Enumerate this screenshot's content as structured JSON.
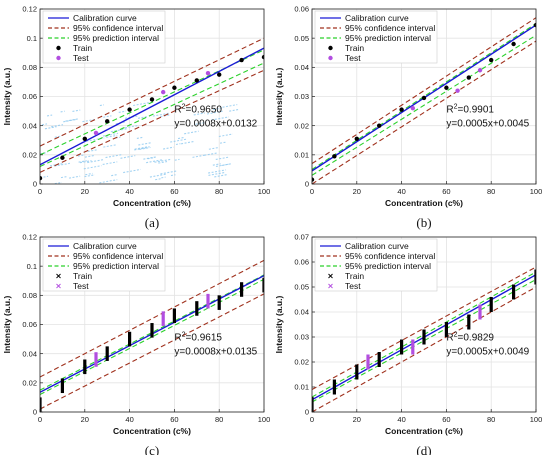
{
  "chart_data": [
    {
      "type": "scatter",
      "panel_label": "(a)",
      "xlabel": "Concentration (c%)",
      "ylabel": "Intensity (a.u.)",
      "xlim": [
        0,
        100
      ],
      "ylim": [
        0,
        0.12
      ],
      "xticks": [
        0,
        20,
        40,
        60,
        80,
        100
      ],
      "yticks": [
        0,
        0.02,
        0.04,
        0.06,
        0.08,
        0.1,
        0.12
      ],
      "ytick_labels": [
        "0",
        "0.02",
        "0.04",
        "0.06",
        "0.08",
        "0.1",
        "0.12"
      ],
      "grid": true,
      "legend_position": "top-left",
      "legend": [
        "Calibration curve",
        "95% confidence interval",
        "95% prediction interval",
        "Train",
        "Test"
      ],
      "calibration": {
        "slope": 0.0008,
        "intercept": 0.0132
      },
      "confidence_band": {
        "lower": [
          0.008,
          0.078
        ],
        "upper": [
          0.026,
          0.1
        ]
      },
      "prediction_band": {
        "lower": [
          0.012,
          0.083
        ],
        "upper": [
          0.02,
          0.092
        ]
      },
      "train": {
        "x": [
          0,
          10,
          20,
          30,
          40,
          50,
          60,
          70,
          80,
          90,
          100
        ],
        "y": [
          0.004,
          0.018,
          0.031,
          0.043,
          0.051,
          0.058,
          0.066,
          0.071,
          0.075,
          0.085,
          0.087
        ]
      },
      "test": {
        "x": [
          25,
          55,
          75
        ],
        "y": [
          0.035,
          0.063,
          0.076
        ]
      },
      "annotation_r2": "0.9650",
      "annotation_eq": "y=0.0008x+0.0132",
      "has_noise_artifact": true
    },
    {
      "type": "scatter",
      "panel_label": "(b)",
      "xlabel": "Concentration (c%)",
      "ylabel": "Intensity (a.u.)",
      "xlim": [
        0,
        100
      ],
      "ylim": [
        0,
        0.06
      ],
      "xticks": [
        0,
        20,
        40,
        60,
        80,
        100
      ],
      "yticks": [
        0,
        0.01,
        0.02,
        0.03,
        0.04,
        0.05,
        0.06
      ],
      "ytick_labels": [
        "0",
        "0.01",
        "0.02",
        "0.03",
        "0.04",
        "0.05",
        "0.06"
      ],
      "grid": true,
      "legend_position": "top-left",
      "legend": [
        "Calibration curve",
        "95% confidence interval",
        "95% prediction interval",
        "Train",
        "Test"
      ],
      "calibration": {
        "slope": 0.0005,
        "intercept": 0.0045
      },
      "confidence_band": {
        "lower": [
          0.0,
          0.049
        ],
        "upper": [
          0.007,
          0.057
        ]
      },
      "prediction_band": {
        "lower": [
          0.003,
          0.051
        ],
        "upper": [
          0.005,
          0.055
        ]
      },
      "train": {
        "x": [
          0,
          10,
          20,
          30,
          40,
          50,
          60,
          70,
          80,
          90,
          100
        ],
        "y": [
          0.0015,
          0.0095,
          0.0155,
          0.02,
          0.0255,
          0.0295,
          0.033,
          0.0365,
          0.0425,
          0.048,
          0.0545
        ]
      },
      "test": {
        "x": [
          45,
          65,
          75
        ],
        "y": [
          0.026,
          0.032,
          0.039
        ]
      },
      "annotation_r2": "0.9901",
      "annotation_eq": "y=0.0005x+0.0045",
      "has_noise_artifact": false
    },
    {
      "type": "scatter",
      "panel_label": "(c)",
      "xlabel": "Concentration (c%)",
      "ylabel": "Intensity (a.u.)",
      "xlim": [
        0,
        100
      ],
      "ylim": [
        0,
        0.12
      ],
      "xticks": [
        0,
        20,
        40,
        60,
        80,
        100
      ],
      "yticks": [
        0,
        0.02,
        0.04,
        0.06,
        0.08,
        0.1,
        0.12
      ],
      "ytick_labels": [
        "0",
        "0.02",
        "0.04",
        "0.06",
        "0.08",
        "0.1",
        "0.12"
      ],
      "grid": true,
      "legend_position": "top-left",
      "legend": [
        "Calibration curve",
        "95% confidence interval",
        "95% prediction interval",
        "Train",
        "Test"
      ],
      "calibration": {
        "slope": 0.0008,
        "intercept": 0.0135
      },
      "confidence_band": {
        "lower": [
          0.002,
          0.081
        ],
        "upper": [
          0.024,
          0.104
        ]
      },
      "prediction_band": {
        "lower": [
          0.012,
          0.091
        ],
        "upper": [
          0.015,
          0.094
        ]
      },
      "train": {
        "x": [
          0,
          10,
          20,
          30,
          40,
          50,
          60,
          70,
          80,
          90,
          100
        ],
        "y": [
          0.005,
          0.018,
          0.031,
          0.04,
          0.05,
          0.056,
          0.066,
          0.071,
          0.075,
          0.084,
          0.087
        ],
        "spread": 0.005
      },
      "test": {
        "x": [
          25,
          55,
          75
        ],
        "y": [
          0.036,
          0.064,
          0.076
        ],
        "spread": 0.005
      },
      "annotation_r2": "0.9615",
      "annotation_eq": "y=0.0008x+0.0135",
      "has_noise_artifact": false
    },
    {
      "type": "scatter",
      "panel_label": "(d)",
      "xlabel": "Concentration (c%)",
      "ylabel": "Intensity (a.u.)",
      "xlim": [
        0,
        100
      ],
      "ylim": [
        0,
        0.07
      ],
      "xticks": [
        0,
        20,
        40,
        60,
        80,
        100
      ],
      "yticks": [
        0,
        0.01,
        0.02,
        0.03,
        0.04,
        0.05,
        0.06,
        0.07
      ],
      "ytick_labels": [
        "0",
        "0.01",
        "0.02",
        "0.03",
        "0.04",
        "0.05",
        "0.06",
        "0.07"
      ],
      "grid": true,
      "legend_position": "top-left",
      "legend": [
        "Calibration curve",
        "95% confidence interval",
        "95% prediction interval",
        "Train",
        "Test"
      ],
      "calibration": {
        "slope": 0.0005,
        "intercept": 0.0049
      },
      "confidence_band": {
        "lower": [
          0.0,
          0.05
        ],
        "upper": [
          0.009,
          0.058
        ]
      },
      "prediction_band": {
        "lower": [
          0.004,
          0.053
        ],
        "upper": [
          0.006,
          0.056
        ]
      },
      "train": {
        "x": [
          0,
          10,
          20,
          30,
          40,
          50,
          60,
          70,
          80,
          90,
          100
        ],
        "y": [
          0.003,
          0.01,
          0.016,
          0.021,
          0.026,
          0.03,
          0.033,
          0.036,
          0.043,
          0.048,
          0.054
        ],
        "spread": 0.003
      },
      "test": {
        "x": [
          25,
          45,
          75
        ],
        "y": [
          0.02,
          0.026,
          0.04
        ],
        "spread": 0.003
      },
      "annotation_r2": "0.9829",
      "annotation_eq": "y=0.0005x+0.0049",
      "has_noise_artifact": false
    }
  ],
  "colors": {
    "calibration": "#1a1ad6",
    "confidence": "#a0321e",
    "prediction": "#2bd12b",
    "train": "#000000",
    "test": "#b24ee0",
    "grid": "#e3e3e3",
    "noise": "#8ec9f0"
  }
}
